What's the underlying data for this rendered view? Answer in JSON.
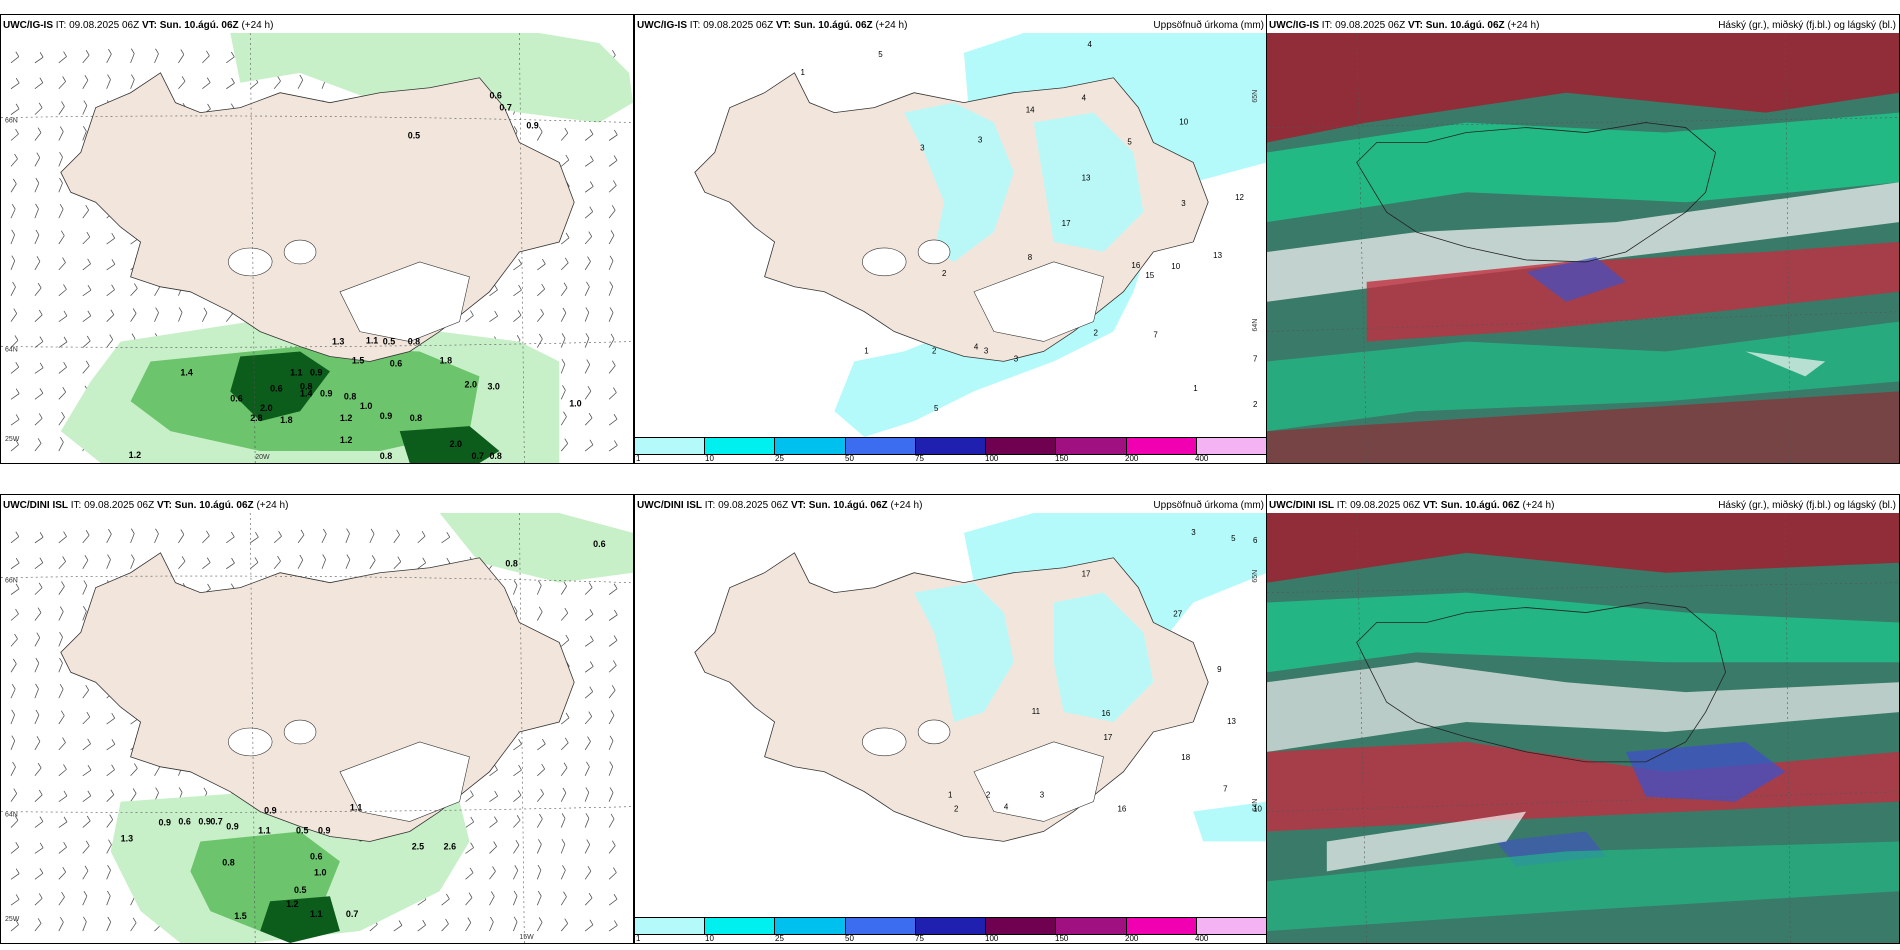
{
  "rows": [
    {
      "wind": {
        "model": "UWC/IG-IS",
        "it_label": "IT:",
        "it_value": "09.08.2025 06Z",
        "vt_label": "VT:",
        "vt_value": "Sun. 10.ágú. 06Z",
        "lead": "(+24 h)",
        "labels": [
          "0.6",
          "0.7",
          "0.9",
          "0.5",
          "1.1",
          "0.5",
          "0.8",
          "1.3",
          "1.5",
          "0.6",
          "1.8",
          "2.0",
          "3.0",
          "1.0",
          "1.4",
          "1.1",
          "0.9",
          "0.8",
          "0.6",
          "1.4",
          "0.9",
          "0.8",
          "1.0",
          "2.0",
          "1.8",
          "0.6",
          "1.2",
          "2.8",
          "0.9",
          "0.8",
          "1.2",
          "2.0",
          "0.7",
          "0.8",
          "1.2",
          "0.8"
        ],
        "lat_labels": [
          "66N",
          "64N",
          "25W"
        ],
        "lon_labels": [
          "20W"
        ]
      },
      "precip": {
        "model": "UWC/IG-IS",
        "it_label": "IT:",
        "it_value": "09.08.2025 06Z",
        "vt_label": "VT:",
        "vt_value": "Sun. 10.ágú. 06Z",
        "lead": "(+24 h)",
        "title": "Uppsöfnuð úrkoma (mm)",
        "labels": [
          "1",
          "5",
          "4",
          "3",
          "3",
          "4",
          "10",
          "14",
          "5",
          "12",
          "13",
          "3",
          "17",
          "13",
          "16",
          "10",
          "15",
          "8",
          "2",
          "4",
          "3",
          "1",
          "2",
          "3",
          "5",
          "7",
          "7",
          "2",
          "1",
          "2"
        ],
        "lat_labels": [
          "65N",
          "64N"
        ]
      },
      "cloud": {
        "model": "UWC/IG-IS",
        "it_label": "IT:",
        "it_value": "09.08.2025 06Z",
        "vt_label": "VT:",
        "vt_value": "Sun. 10.ágú. 06Z",
        "lead": "(+24 h)",
        "title": "Háský (gr.), miðský (fj.bl.) og lágský (bl.)"
      }
    },
    {
      "wind": {
        "model": "UWC/DINI ISL",
        "it_label": "IT:",
        "it_value": "09.08.2025 06Z",
        "vt_label": "VT:",
        "vt_value": "Sun. 10.ágú. 06Z",
        "lead": "(+24 h)",
        "labels": [
          "0.6",
          "0.8",
          "1.3",
          "0.9",
          "0.6",
          "0.9",
          "0.7",
          "0.9",
          "0.9",
          "1.1",
          "0.5",
          "0.9",
          "1.1",
          "0.6",
          "0.8",
          "1.0",
          "2.5",
          "2.6",
          "0.5",
          "1.2",
          "1.1",
          "0.7",
          "1.5"
        ],
        "lat_labels": [
          "66N",
          "64N",
          "25W"
        ],
        "lon_labels": [
          "15W"
        ]
      },
      "precip": {
        "model": "UWC/DINI ISL",
        "it_label": "IT:",
        "it_value": "09.08.2025 06Z",
        "vt_label": "VT:",
        "vt_value": "Sun. 10.ágú. 06Z",
        "lead": "(+24 h)",
        "title": "Uppsöfnuð úrkoma (mm)",
        "labels": [
          "3",
          "5",
          "6",
          "17",
          "9",
          "27",
          "13",
          "17",
          "16",
          "18",
          "11",
          "4",
          "2",
          "16",
          "10",
          "3",
          "1",
          "2",
          "7"
        ],
        "lat_labels": [
          "65N",
          "64N"
        ]
      },
      "cloud": {
        "model": "UWC/DINI ISL",
        "it_label": "IT:",
        "it_value": "09.08.2025 06Z",
        "vt_label": "VT:",
        "vt_value": "Sun. 10.ágú. 06Z",
        "lead": "(+24 h)",
        "title": "Háský (gr.), miðský (fj.bl.) og lágský (bl.)"
      }
    }
  ],
  "colorbar": {
    "colors": [
      "#b4fafa",
      "#00f0f0",
      "#00c0f0",
      "#3c6cf0",
      "#2020b0",
      "#700050",
      "#a01080",
      "#f000b0",
      "#f4b4f4"
    ],
    "ticks": [
      "1",
      "10",
      "25",
      "50",
      "75",
      "100",
      "150",
      "200",
      "400"
    ]
  },
  "colors": {
    "land": "#f2e6dc",
    "precip_light": "#c8f0c8",
    "precip_mid": "#6cc46c",
    "precip_dark": "#0c5c1c",
    "precip_cyan": "#b4fafa",
    "cloud_green": "#20c088",
    "cloud_red": "#a02030",
    "cloud_blue": "#4050c8"
  }
}
